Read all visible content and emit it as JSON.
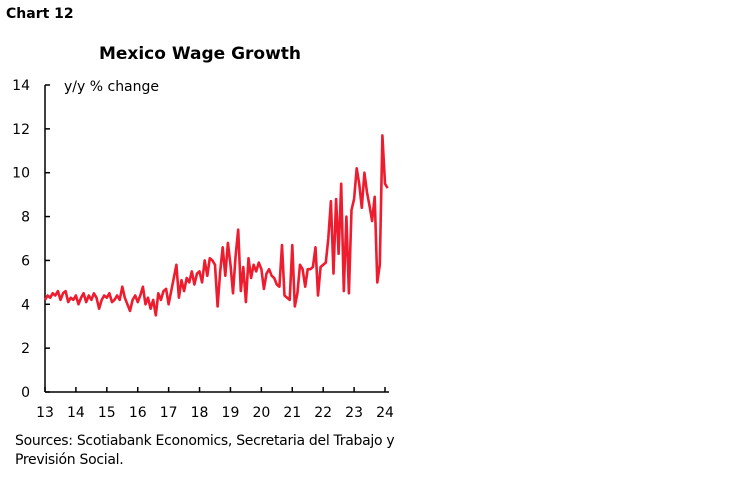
{
  "chart_label": "Chart 12",
  "sources": "Sources: Scotiabank Economics, Secretaria del Trabajo y Previsión Social.",
  "chart_data": {
    "type": "line",
    "title": "Mexico Wage Growth",
    "ylabel": "y/y % change",
    "ylim": [
      0,
      14
    ],
    "yticks": [
      "0",
      "2",
      "4",
      "6",
      "8",
      "10",
      "12",
      "14"
    ],
    "xticks": [
      "13",
      "14",
      "15",
      "16",
      "17",
      "18",
      "19",
      "20",
      "21",
      "22",
      "23",
      "24"
    ],
    "x_start": 2013,
    "frequency": "monthly",
    "color": "#ed1c2e",
    "grid": false,
    "values": [
      4.2,
      4.4,
      4.3,
      4.5,
      4.4,
      4.6,
      4.2,
      4.5,
      4.6,
      4.1,
      4.3,
      4.2,
      4.4,
      4.0,
      4.3,
      4.5,
      4.1,
      4.4,
      4.2,
      4.5,
      4.3,
      3.8,
      4.2,
      4.4,
      4.3,
      4.5,
      4.1,
      4.2,
      4.4,
      4.2,
      4.8,
      4.3,
      4.0,
      3.7,
      4.2,
      4.4,
      4.1,
      4.4,
      4.8,
      4.0,
      4.3,
      3.8,
      4.2,
      3.5,
      4.5,
      4.2,
      4.6,
      4.7,
      4.0,
      4.6,
      5.2,
      5.8,
      4.3,
      5.1,
      4.6,
      5.2,
      5.0,
      5.5,
      4.9,
      5.4,
      5.5,
      5.0,
      6.0,
      5.3,
      6.1,
      6.0,
      5.8,
      3.9,
      5.5,
      6.6,
      5.3,
      6.8,
      5.8,
      4.5,
      6.2,
      7.4,
      4.6,
      5.7,
      4.1,
      6.1,
      5.2,
      5.8,
      5.5,
      5.9,
      5.6,
      4.7,
      5.4,
      5.6,
      5.3,
      5.2,
      4.9,
      4.8,
      6.7,
      4.4,
      4.3,
      4.2,
      6.7,
      3.9,
      4.5,
      5.8,
      5.6,
      4.8,
      5.6,
      5.6,
      5.7,
      6.6,
      4.4,
      5.7,
      5.8,
      5.9,
      7.0,
      8.7,
      5.4,
      8.8,
      6.3,
      9.5,
      4.6,
      8.0,
      4.5,
      8.3,
      8.8,
      10.2,
      9.5,
      8.4,
      10.0,
      9.1,
      8.5,
      7.8,
      8.9,
      5.0,
      5.8,
      11.7,
      9.5,
      9.3
    ]
  }
}
